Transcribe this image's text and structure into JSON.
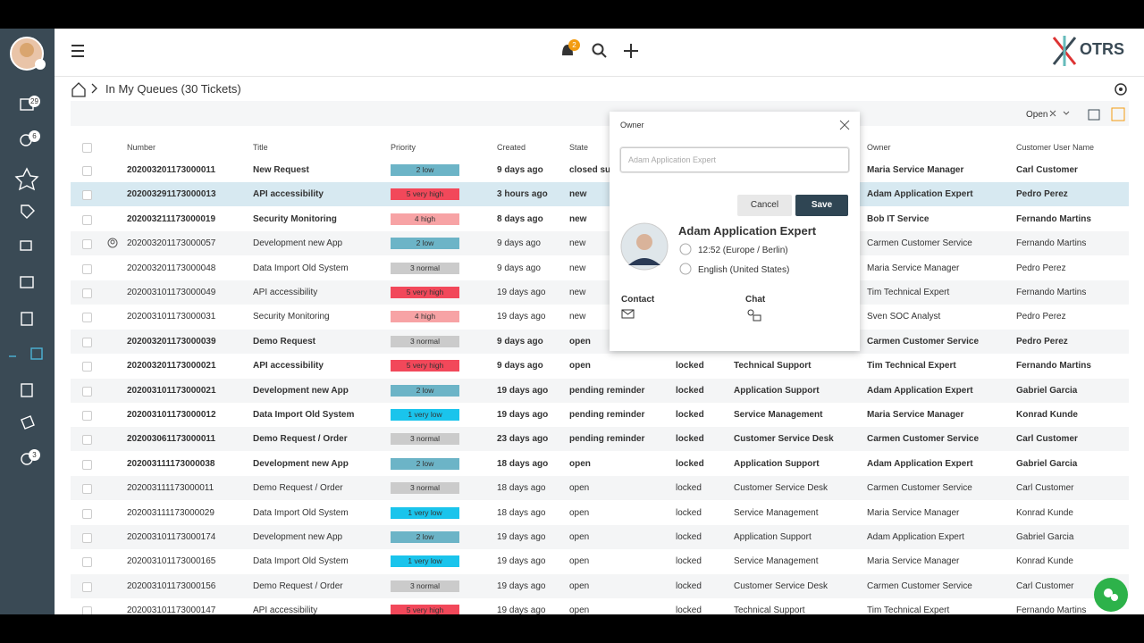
{
  "header": {
    "notification_count": "2",
    "logo": "OTRS"
  },
  "sidebar": {
    "badges": [
      "29",
      "6",
      "3"
    ]
  },
  "breadcrumb": {
    "title": "In My Queues (30 Tickets)"
  },
  "toolbar": {
    "filter": "Open"
  },
  "table": {
    "columns": {
      "number": "Number",
      "title": "Title",
      "priority": "Priority",
      "created": "Created",
      "state": "State",
      "owner": "Owner",
      "customer": "Customer User Name"
    },
    "rows": [
      {
        "number": "202003201173000011",
        "title": "New Request",
        "priority": "2 low",
        "priority_color": "#6cb4c7",
        "created": "9 days ago",
        "state": "closed successful",
        "owner": "Maria Service Manager",
        "customer": "Carl Customer",
        "bold": true
      },
      {
        "number": "202003291173000013",
        "title": "API accessibility",
        "priority": "5 very high",
        "priority_color": "#f2485a",
        "created": "3 hours ago",
        "state": "new",
        "owner": "Adam Application Expert",
        "customer": "Pedro Perez",
        "bold": true,
        "selected": true
      },
      {
        "number": "202003211173000019",
        "title": "Security Monitoring",
        "priority": "4 high",
        "priority_color": "#f7a3a5",
        "created": "8 days ago",
        "state": "new",
        "owner": "Bob IT Service",
        "customer": "Fernando Martins",
        "bold": true
      },
      {
        "number": "202003201173000057",
        "title": "Development new App",
        "priority": "2 low",
        "priority_color": "#6cb4c7",
        "created": "9 days ago",
        "state": "new",
        "owner": "Carmen Customer Service",
        "customer": "Fernando Martins",
        "bold": false,
        "watched": true
      },
      {
        "number": "202003201173000048",
        "title": "Data Import Old System",
        "priority": "3 normal",
        "priority_color": "#cbcbcb",
        "created": "9 days ago",
        "state": "new",
        "owner": "Maria Service Manager",
        "customer": "Pedro Perez",
        "bold": false
      },
      {
        "number": "202003101173000049",
        "title": "API accessibility",
        "priority": "5 very high",
        "priority_color": "#f2485a",
        "created": "19 days ago",
        "state": "new",
        "owner": "Tim Technical Expert",
        "customer": "Fernando Martins",
        "bold": false
      },
      {
        "number": "202003101173000031",
        "title": "Security Monitoring",
        "priority": "4 high",
        "priority_color": "#f7a3a5",
        "created": "19 days ago",
        "state": "new",
        "owner": "Sven SOC Analyst",
        "customer": "Pedro Perez",
        "bold": false
      },
      {
        "number": "202003201173000039",
        "title": "Demo Request",
        "priority": "3 normal",
        "priority_color": "#cbcbcb",
        "created": "9 days ago",
        "state": "open",
        "owner": "Carmen Customer Service",
        "customer": "Pedro Perez",
        "bold": true
      },
      {
        "number": "202003201173000021",
        "title": "API accessibility",
        "priority": "5 very high",
        "priority_color": "#f2485a",
        "created": "9 days ago",
        "state": "open",
        "lock": "locked",
        "queue": "Technical Support",
        "owner": "Tim Technical Expert",
        "customer": "Fernando Martins",
        "bold": true
      },
      {
        "number": "202003101173000021",
        "title": "Development new App",
        "priority": "2 low",
        "priority_color": "#6cb4c7",
        "created": "19 days ago",
        "state": "pending reminder",
        "lock": "locked",
        "queue": "Application Support",
        "owner": "Adam Application Expert",
        "customer": "Gabriel Garcia",
        "bold": true
      },
      {
        "number": "202003101173000012",
        "title": "Data Import Old System",
        "priority": "1 very low",
        "priority_color": "#1ac4ec",
        "created": "19 days ago",
        "state": "pending reminder",
        "lock": "locked",
        "queue": "Service Management",
        "owner": "Maria Service Manager",
        "customer": "Konrad Kunde",
        "bold": true
      },
      {
        "number": "202003061173000011",
        "title": "Demo Request / Order",
        "priority": "3 normal",
        "priority_color": "#cbcbcb",
        "created": "23 days ago",
        "state": "pending reminder",
        "lock": "locked",
        "queue": "Customer Service Desk",
        "owner": "Carmen Customer Service",
        "customer": "Carl Customer",
        "bold": true
      },
      {
        "number": "202003111173000038",
        "title": "Development new App",
        "priority": "2 low",
        "priority_color": "#6cb4c7",
        "created": "18 days ago",
        "state": "open",
        "lock": "locked",
        "queue": "Application Support",
        "owner": "Adam Application Expert",
        "customer": "Gabriel Garcia",
        "bold": true
      },
      {
        "number": "202003111173000011",
        "title": "Demo Request / Order",
        "priority": "3 normal",
        "priority_color": "#cbcbcb",
        "created": "18 days ago",
        "state": "open",
        "lock": "locked",
        "queue": "Customer Service Desk",
        "owner": "Carmen Customer Service",
        "customer": "Carl Customer",
        "bold": false
      },
      {
        "number": "202003111173000029",
        "title": "Data Import Old System",
        "priority": "1 very low",
        "priority_color": "#1ac4ec",
        "created": "18 days ago",
        "state": "open",
        "lock": "locked",
        "queue": "Service Management",
        "owner": "Maria Service Manager",
        "customer": "Konrad Kunde",
        "bold": false
      },
      {
        "number": "202003101173000174",
        "title": "Development new App",
        "priority": "2 low",
        "priority_color": "#6cb4c7",
        "created": "19 days ago",
        "state": "open",
        "lock": "locked",
        "queue": "Application Support",
        "owner": "Adam Application Expert",
        "customer": "Gabriel Garcia",
        "bold": false
      },
      {
        "number": "202003101173000165",
        "title": "Data Import Old System",
        "priority": "1 very low",
        "priority_color": "#1ac4ec",
        "created": "19 days ago",
        "state": "open",
        "lock": "locked",
        "queue": "Service Management",
        "owner": "Maria Service Manager",
        "customer": "Konrad Kunde",
        "bold": false
      },
      {
        "number": "202003101173000156",
        "title": "Demo Request / Order",
        "priority": "3 normal",
        "priority_color": "#cbcbcb",
        "created": "19 days ago",
        "state": "open",
        "lock": "locked",
        "queue": "Customer Service Desk",
        "owner": "Carmen Customer Service",
        "customer": "Carl Customer",
        "bold": false
      },
      {
        "number": "202003101173000147",
        "title": "API accessibility",
        "priority": "5 very high",
        "priority_color": "#f2485a",
        "created": "19 days ago",
        "state": "open",
        "lock": "locked",
        "queue": "Technical Support",
        "owner": "Tim Technical Expert",
        "customer": "Fernando Martins",
        "bold": false
      }
    ]
  },
  "popup": {
    "title": "Owner",
    "input": "Adam Application Expert",
    "cancel": "Cancel",
    "save": "Save",
    "name": "Adam Application Expert",
    "time": "12:52 (Europe / Berlin)",
    "language": "English (United States)",
    "contact": "Contact",
    "chat": "Chat"
  }
}
